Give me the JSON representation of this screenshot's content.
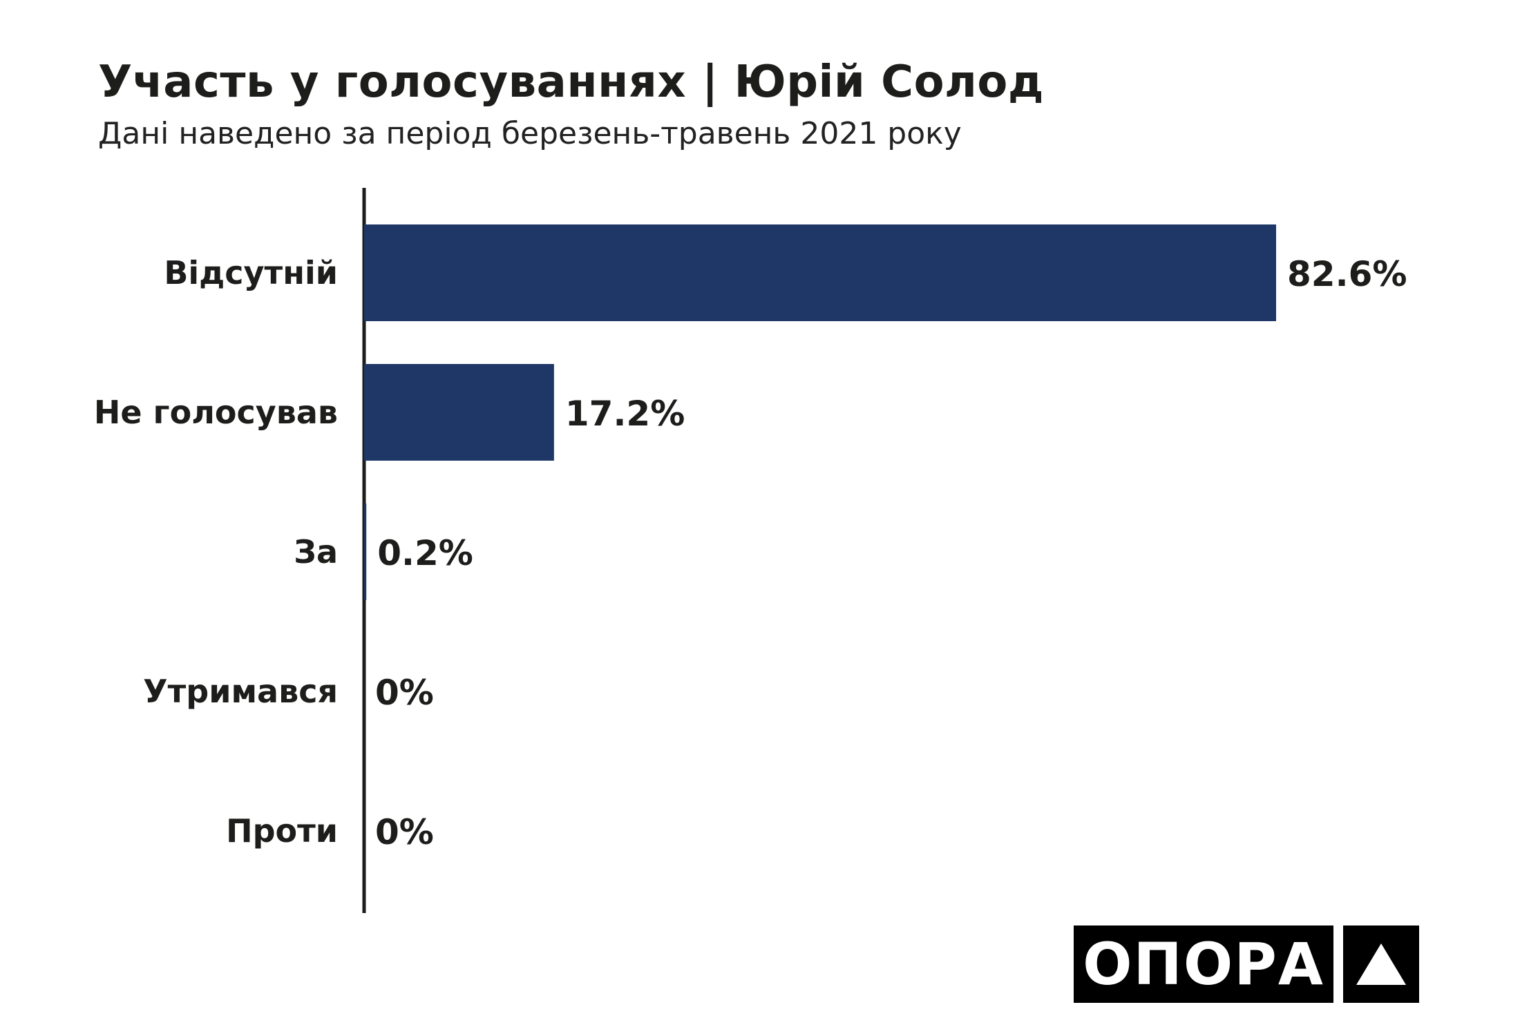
{
  "header": {
    "title": "Участь у голосуваннях | Юрій Солод",
    "subtitle": "Дані наведено за період березень-травень 2021 року"
  },
  "chart_data": {
    "type": "bar",
    "orientation": "horizontal",
    "title": "Участь у голосуваннях | Юрій Солод",
    "subtitle": "Дані наведено за період березень-травень 2021 року",
    "categories": [
      "Відсутній",
      "Не голосував",
      "За",
      "Утримався",
      "Проти"
    ],
    "values": [
      82.6,
      17.2,
      0.2,
      0,
      0
    ],
    "value_labels": [
      "82.6%",
      "17.2%",
      "0.2%",
      "0%",
      "0%"
    ],
    "unit": "%",
    "xlim": [
      0,
      100
    ],
    "grid": false,
    "legend": "none",
    "bar_color": "#1f3767"
  },
  "logo": {
    "text": "ОПОРА",
    "icon": "triangle-icon",
    "color": "#000000"
  }
}
